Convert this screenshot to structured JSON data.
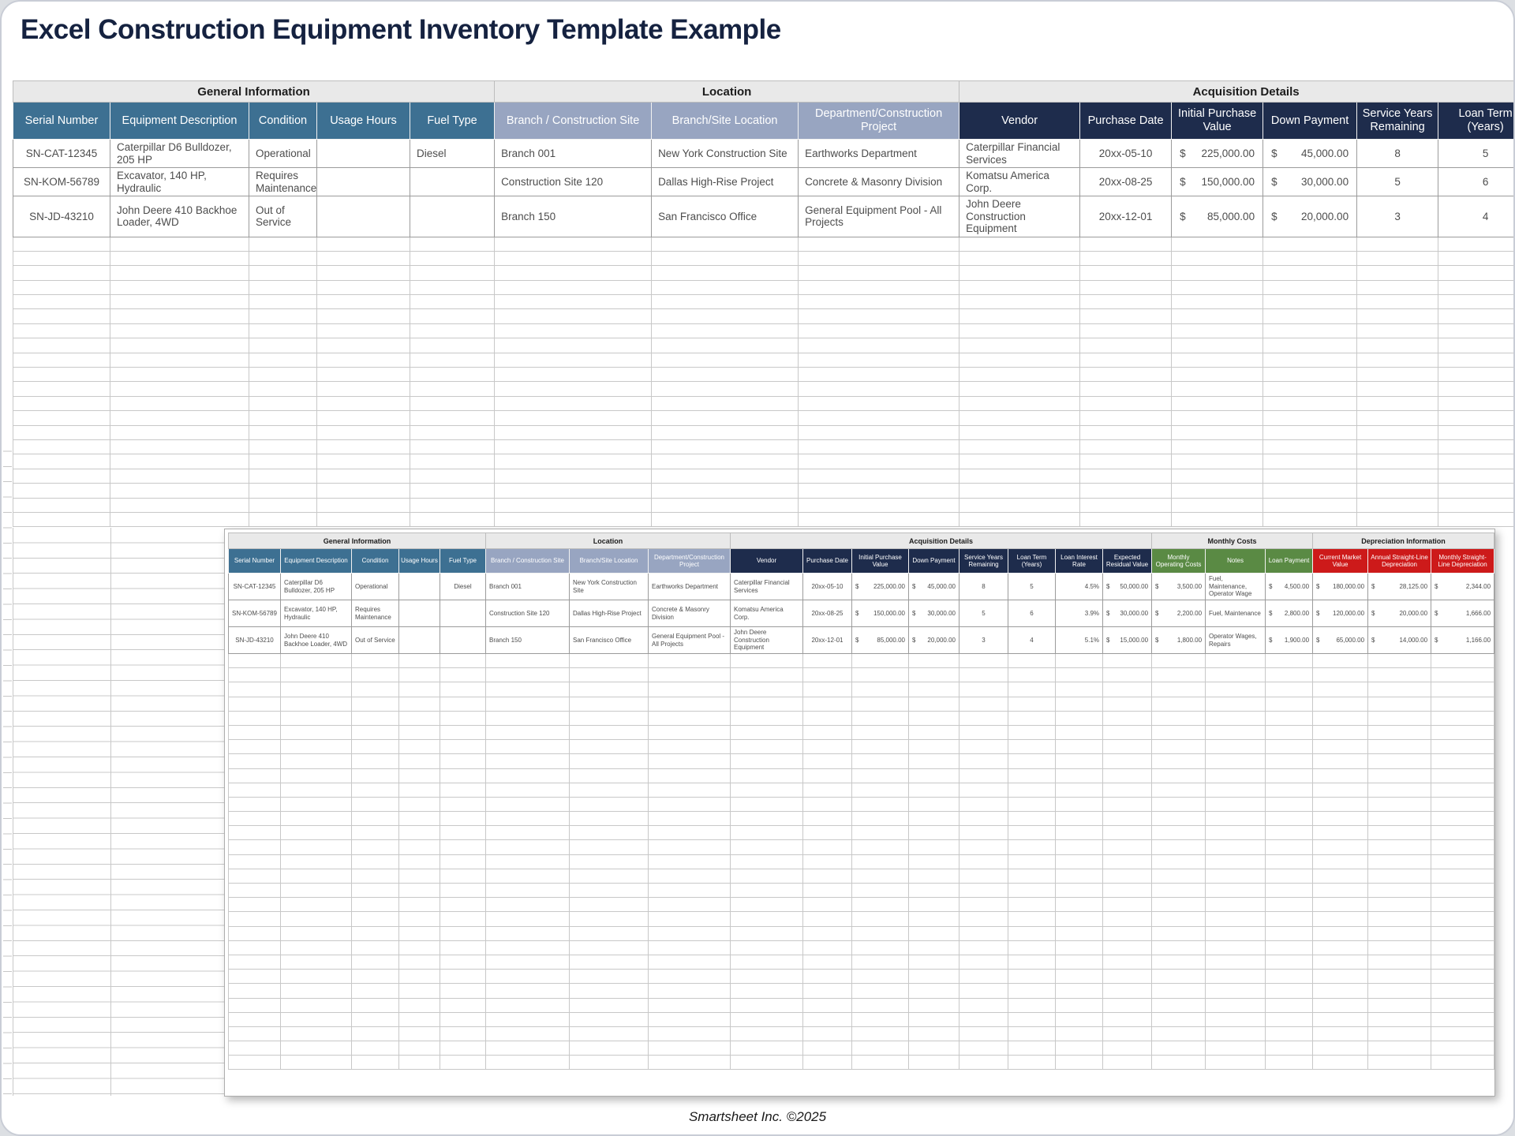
{
  "title": "Excel Construction Equipment Inventory Template Example",
  "footer": "Smartsheet Inc. ©2025",
  "colors": {
    "title_text": "#152240",
    "general_info_header": "#3d7092",
    "location_header": "#98a5c1",
    "acquisition_header": "#1e2c4c",
    "monthly_costs_header": "#5a8a44",
    "depreciation_header": "#cd1a1a",
    "group_band_bg": "#e9e9e9"
  },
  "main_table": {
    "groups": [
      {
        "label": "General Information",
        "span": 5
      },
      {
        "label": "Location",
        "span": 3
      },
      {
        "label": "Acquisition Details",
        "span": 6
      }
    ],
    "columns": [
      {
        "label": "Serial Number",
        "section": "steel",
        "type": "center"
      },
      {
        "label": "Equipment Description",
        "section": "steel",
        "type": "text"
      },
      {
        "label": "Condition",
        "section": "steel",
        "type": "text"
      },
      {
        "label": "Usage Hours",
        "section": "steel",
        "type": "center"
      },
      {
        "label": "Fuel Type",
        "section": "steel",
        "type": "text"
      },
      {
        "label": "Branch / Construction Site",
        "section": "lightblue",
        "type": "text"
      },
      {
        "label": "Branch/Site Location",
        "section": "lightblue",
        "type": "text"
      },
      {
        "label": "Department/Construction Project",
        "section": "lightblue",
        "type": "text"
      },
      {
        "label": "Vendor",
        "section": "navy",
        "type": "text"
      },
      {
        "label": "Purchase Date",
        "section": "navy",
        "type": "center"
      },
      {
        "label": "Initial Purchase Value",
        "section": "navy",
        "type": "money"
      },
      {
        "label": "Down Payment",
        "section": "navy",
        "type": "money"
      },
      {
        "label": "Service Years Remaining",
        "section": "navy",
        "type": "center"
      },
      {
        "label": "Loan Term (Years)",
        "section": "navy",
        "type": "center"
      }
    ],
    "rows": [
      [
        "SN-CAT-12345",
        "Caterpillar D6 Bulldozer, 205 HP",
        "Operational",
        "",
        "Diesel",
        "Branch 001",
        "New York Construction Site",
        "Earthworks Department",
        "Caterpillar Financial Services",
        "20xx-05-10",
        "225,000.00",
        "45,000.00",
        "8",
        "5"
      ],
      [
        "SN-KOM-56789",
        "Excavator, 140 HP, Hydraulic",
        "Requires Maintenance",
        "",
        "",
        "Construction Site 120",
        "Dallas High-Rise Project",
        "Concrete & Masonry Division",
        "Komatsu America Corp.",
        "20xx-08-25",
        "150,000.00",
        "30,000.00",
        "5",
        "6"
      ],
      [
        "SN-JD-43210",
        "John Deere 410 Backhoe Loader, 4WD",
        "Out of Service",
        "",
        "",
        "Branch 150",
        "San Francisco Office",
        "General Equipment Pool - All Projects",
        "John Deere Construction Equipment",
        "20xx-12-01",
        "85,000.00",
        "20,000.00",
        "3",
        "4"
      ]
    ],
    "empty_row_count": 20
  },
  "inset_table": {
    "groups": [
      {
        "label": "General Information",
        "span": 5
      },
      {
        "label": "Location",
        "span": 3
      },
      {
        "label": "Acquisition Details",
        "span": 8
      },
      {
        "label": "Monthly Costs",
        "span": 3
      },
      {
        "label": "Depreciation Information",
        "span": 3
      }
    ],
    "columns": [
      {
        "label": "Serial Number",
        "section": "steel",
        "type": "center"
      },
      {
        "label": "Equipment Description",
        "section": "steel",
        "type": "text"
      },
      {
        "label": "Condition",
        "section": "steel",
        "type": "text"
      },
      {
        "label": "Usage Hours",
        "section": "steel",
        "type": "center"
      },
      {
        "label": "Fuel Type",
        "section": "steel",
        "type": "center"
      },
      {
        "label": "Branch / Construction Site",
        "section": "lightblue",
        "type": "text"
      },
      {
        "label": "Branch/Site Location",
        "section": "lightblue",
        "type": "text"
      },
      {
        "label": "Department/Construction Project",
        "section": "lightblue",
        "type": "text"
      },
      {
        "label": "Vendor",
        "section": "navy",
        "type": "text"
      },
      {
        "label": "Purchase Date",
        "section": "navy",
        "type": "center"
      },
      {
        "label": "Initial Purchase Value",
        "section": "navy",
        "type": "money"
      },
      {
        "label": "Down Payment",
        "section": "navy",
        "type": "money"
      },
      {
        "label": "Service Years Remaining",
        "section": "navy",
        "type": "center"
      },
      {
        "label": "Loan Term (Years)",
        "section": "navy",
        "type": "center"
      },
      {
        "label": "Loan Interest Rate",
        "section": "navy",
        "type": "percent"
      },
      {
        "label": "Expected Residual Value",
        "section": "navy",
        "type": "money"
      },
      {
        "label": "Monthly Operating Costs",
        "section": "green",
        "type": "money"
      },
      {
        "label": "Notes",
        "section": "green",
        "type": "text"
      },
      {
        "label": "Loan Payment",
        "section": "green",
        "type": "money"
      },
      {
        "label": "Current Market Value",
        "section": "red",
        "type": "money"
      },
      {
        "label": "Annual Straight-Line Depreciation",
        "section": "red",
        "type": "money"
      },
      {
        "label": "Monthly Straight-Line Depreciation",
        "section": "red",
        "type": "money"
      }
    ],
    "rows": [
      [
        "SN-CAT-12345",
        "Caterpillar D6 Bulldozer, 205 HP",
        "Operational",
        "",
        "Diesel",
        "Branch 001",
        "New York Construction Site",
        "Earthworks Department",
        "Caterpillar Financial Services",
        "20xx-05-10",
        "225,000.00",
        "45,000.00",
        "8",
        "5",
        "4.5%",
        "50,000.00",
        "3,500.00",
        "Fuel, Maintenance, Operator Wage",
        "4,500.00",
        "180,000.00",
        "28,125.00",
        "2,344.00"
      ],
      [
        "SN-KOM-56789",
        "Excavator, 140 HP, Hydraulic",
        "Requires Maintenance",
        "",
        "",
        "Construction Site 120",
        "Dallas High-Rise Project",
        "Concrete & Masonry Division",
        "Komatsu America Corp.",
        "20xx-08-25",
        "150,000.00",
        "30,000.00",
        "5",
        "6",
        "3.9%",
        "30,000.00",
        "2,200.00",
        "Fuel, Maintenance",
        "2,800.00",
        "120,000.00",
        "20,000.00",
        "1,666.00"
      ],
      [
        "SN-JD-43210",
        "John Deere 410 Backhoe Loader, 4WD",
        "Out of Service",
        "",
        "",
        "Branch 150",
        "San Francisco Office",
        "General Equipment Pool - All Projects",
        "John Deere Construction Equipment",
        "20xx-12-01",
        "85,000.00",
        "20,000.00",
        "3",
        "4",
        "5.1%",
        "15,000.00",
        "1,800.00",
        "Operator Wages, Repairs",
        "1,900.00",
        "65,000.00",
        "14,000.00",
        "1,166.00"
      ]
    ],
    "empty_row_count": 29
  }
}
